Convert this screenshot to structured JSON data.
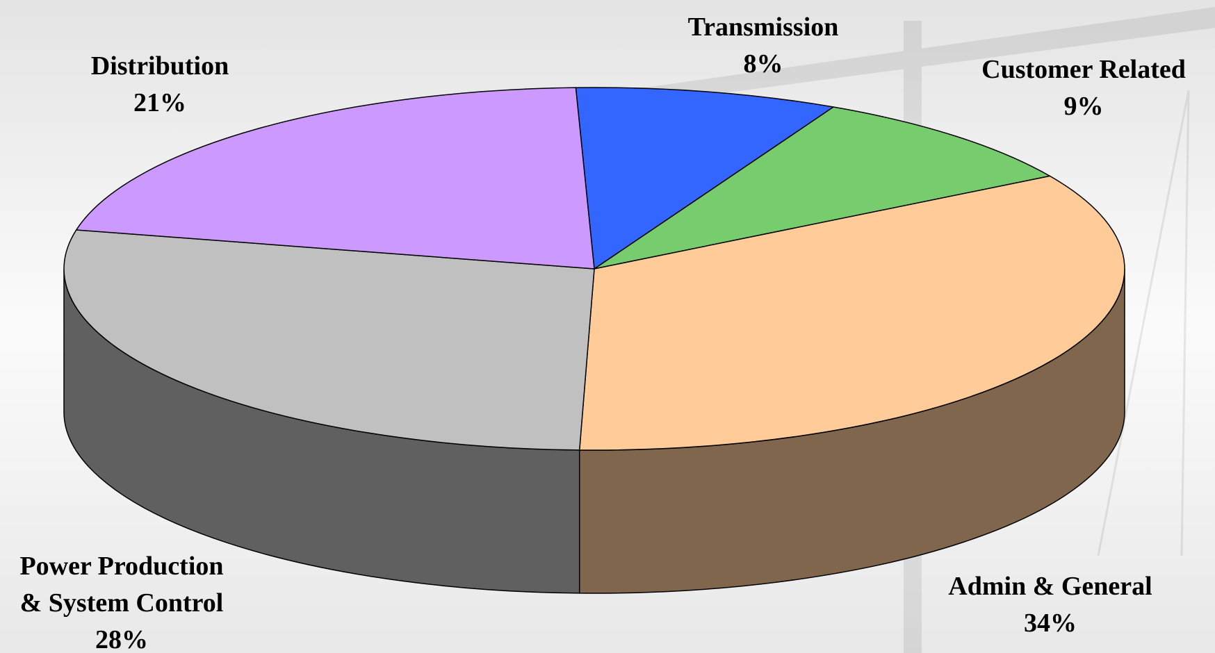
{
  "chart_data": {
    "type": "pie3d",
    "categories": [
      "Transmission",
      "Customer Related",
      "Admin & General",
      "Power Production & System Control",
      "Distribution"
    ],
    "values": [
      8,
      9,
      34,
      28,
      21
    ],
    "value_labels": [
      "8%",
      "9%",
      "34%",
      "28%",
      "21%"
    ],
    "colors": [
      "#3366ff",
      "#77cc6e",
      "#ffcc99",
      "#c0c0c0",
      "#cc99ff"
    ]
  }
}
